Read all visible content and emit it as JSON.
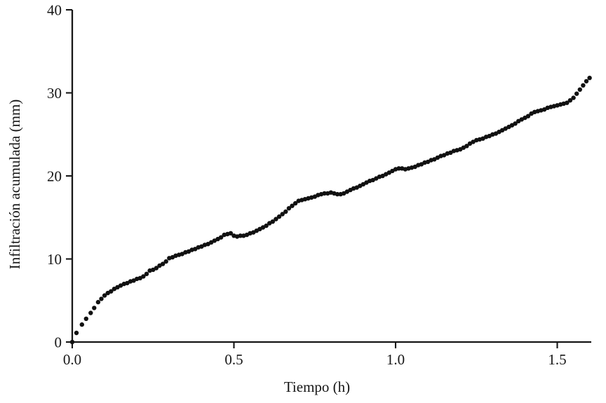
{
  "chart_data": {
    "type": "scatter",
    "title": "",
    "xlabel": "Tiempo (h)",
    "ylabel": "Infiltración acumulada (mm)",
    "xlim": [
      0,
      1.61
    ],
    "ylim": [
      0,
      40
    ],
    "x_ticks": [
      "0.0",
      "0.5",
      "1.0",
      "1.5"
    ],
    "x_tick_values": [
      0,
      0.5,
      1.0,
      1.5
    ],
    "y_ticks": [
      "0",
      "10",
      "20",
      "30",
      "40"
    ],
    "y_tick_values": [
      0,
      10,
      20,
      30,
      40
    ],
    "grid": false,
    "legend": null,
    "axis_color": "#161616",
    "marker": {
      "shape": "circle",
      "color": "#111111",
      "radius_px": 3.2
    },
    "series": [
      {
        "name": "Infiltración acumulada",
        "points": [
          [
            0,
            0
          ],
          [
            0.013,
            1.1
          ],
          [
            0.03,
            2.1
          ],
          [
            0.043,
            2.8
          ],
          [
            0.057,
            3.5
          ],
          [
            0.068,
            4.1
          ],
          [
            0.08,
            4.8
          ],
          [
            0.09,
            5.2
          ],
          [
            0.1,
            5.6
          ],
          [
            0.11,
            5.9
          ],
          [
            0.12,
            6.1
          ],
          [
            0.13,
            6.4
          ],
          [
            0.14,
            6.6
          ],
          [
            0.15,
            6.8
          ],
          [
            0.16,
            7.0
          ],
          [
            0.17,
            7.1
          ],
          [
            0.18,
            7.3
          ],
          [
            0.19,
            7.4
          ],
          [
            0.2,
            7.6
          ],
          [
            0.21,
            7.7
          ],
          [
            0.22,
            7.9
          ],
          [
            0.23,
            8.2
          ],
          [
            0.24,
            8.6
          ],
          [
            0.25,
            8.7
          ],
          [
            0.26,
            8.9
          ],
          [
            0.27,
            9.2
          ],
          [
            0.28,
            9.4
          ],
          [
            0.29,
            9.7
          ],
          [
            0.3,
            10.1
          ],
          [
            0.31,
            10.2
          ],
          [
            0.32,
            10.4
          ],
          [
            0.33,
            10.5
          ],
          [
            0.34,
            10.6
          ],
          [
            0.35,
            10.8
          ],
          [
            0.36,
            10.9
          ],
          [
            0.37,
            11.1
          ],
          [
            0.38,
            11.2
          ],
          [
            0.39,
            11.4
          ],
          [
            0.4,
            11.5
          ],
          [
            0.41,
            11.7
          ],
          [
            0.42,
            11.8
          ],
          [
            0.43,
            12.0
          ],
          [
            0.44,
            12.2
          ],
          [
            0.45,
            12.4
          ],
          [
            0.46,
            12.6
          ],
          [
            0.47,
            12.9
          ],
          [
            0.48,
            13.0
          ],
          [
            0.49,
            13.1
          ],
          [
            0.5,
            12.8
          ],
          [
            0.51,
            12.7
          ],
          [
            0.52,
            12.8
          ],
          [
            0.53,
            12.8
          ],
          [
            0.54,
            12.9
          ],
          [
            0.55,
            13.1
          ],
          [
            0.56,
            13.2
          ],
          [
            0.57,
            13.4
          ],
          [
            0.58,
            13.6
          ],
          [
            0.59,
            13.8
          ],
          [
            0.6,
            14.0
          ],
          [
            0.61,
            14.3
          ],
          [
            0.62,
            14.5
          ],
          [
            0.63,
            14.8
          ],
          [
            0.64,
            15.1
          ],
          [
            0.65,
            15.4
          ],
          [
            0.66,
            15.7
          ],
          [
            0.67,
            16.1
          ],
          [
            0.68,
            16.4
          ],
          [
            0.69,
            16.7
          ],
          [
            0.7,
            17.0
          ],
          [
            0.71,
            17.1
          ],
          [
            0.72,
            17.2
          ],
          [
            0.73,
            17.3
          ],
          [
            0.74,
            17.4
          ],
          [
            0.75,
            17.5
          ],
          [
            0.76,
            17.7
          ],
          [
            0.77,
            17.8
          ],
          [
            0.78,
            17.9
          ],
          [
            0.79,
            17.9
          ],
          [
            0.8,
            18.0
          ],
          [
            0.81,
            17.9
          ],
          [
            0.82,
            17.8
          ],
          [
            0.83,
            17.8
          ],
          [
            0.84,
            17.9
          ],
          [
            0.85,
            18.1
          ],
          [
            0.86,
            18.3
          ],
          [
            0.87,
            18.5
          ],
          [
            0.88,
            18.6
          ],
          [
            0.89,
            18.8
          ],
          [
            0.9,
            19.0
          ],
          [
            0.91,
            19.2
          ],
          [
            0.92,
            19.4
          ],
          [
            0.93,
            19.5
          ],
          [
            0.94,
            19.7
          ],
          [
            0.95,
            19.9
          ],
          [
            0.96,
            20.0
          ],
          [
            0.97,
            20.2
          ],
          [
            0.98,
            20.4
          ],
          [
            0.99,
            20.6
          ],
          [
            1.0,
            20.8
          ],
          [
            1.01,
            20.9
          ],
          [
            1.02,
            20.9
          ],
          [
            1.03,
            20.8
          ],
          [
            1.04,
            20.9
          ],
          [
            1.05,
            21.0
          ],
          [
            1.06,
            21.1
          ],
          [
            1.07,
            21.3
          ],
          [
            1.08,
            21.4
          ],
          [
            1.09,
            21.6
          ],
          [
            1.1,
            21.7
          ],
          [
            1.11,
            21.9
          ],
          [
            1.12,
            22.0
          ],
          [
            1.13,
            22.2
          ],
          [
            1.14,
            22.4
          ],
          [
            1.15,
            22.5
          ],
          [
            1.16,
            22.7
          ],
          [
            1.17,
            22.8
          ],
          [
            1.18,
            23.0
          ],
          [
            1.19,
            23.1
          ],
          [
            1.2,
            23.2
          ],
          [
            1.21,
            23.4
          ],
          [
            1.22,
            23.6
          ],
          [
            1.23,
            23.9
          ],
          [
            1.24,
            24.1
          ],
          [
            1.25,
            24.3
          ],
          [
            1.26,
            24.4
          ],
          [
            1.27,
            24.5
          ],
          [
            1.28,
            24.7
          ],
          [
            1.29,
            24.8
          ],
          [
            1.3,
            25.0
          ],
          [
            1.31,
            25.1
          ],
          [
            1.32,
            25.3
          ],
          [
            1.33,
            25.5
          ],
          [
            1.34,
            25.7
          ],
          [
            1.35,
            25.9
          ],
          [
            1.36,
            26.1
          ],
          [
            1.37,
            26.3
          ],
          [
            1.38,
            26.6
          ],
          [
            1.39,
            26.8
          ],
          [
            1.4,
            27.0
          ],
          [
            1.41,
            27.2
          ],
          [
            1.42,
            27.5
          ],
          [
            1.43,
            27.7
          ],
          [
            1.44,
            27.8
          ],
          [
            1.45,
            27.9
          ],
          [
            1.46,
            28.0
          ],
          [
            1.47,
            28.2
          ],
          [
            1.48,
            28.3
          ],
          [
            1.49,
            28.4
          ],
          [
            1.5,
            28.5
          ],
          [
            1.51,
            28.6
          ],
          [
            1.52,
            28.7
          ],
          [
            1.53,
            28.8
          ],
          [
            1.54,
            29.1
          ],
          [
            1.55,
            29.4
          ],
          [
            1.56,
            29.9
          ],
          [
            1.57,
            30.4
          ],
          [
            1.58,
            30.9
          ],
          [
            1.59,
            31.4
          ],
          [
            1.6,
            31.8
          ]
        ]
      }
    ]
  }
}
